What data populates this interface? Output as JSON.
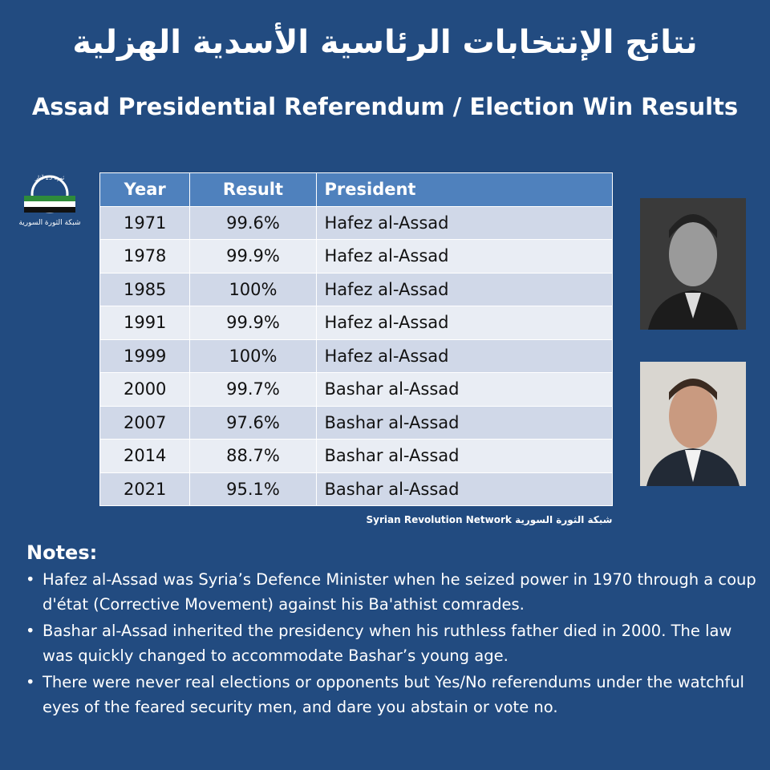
{
  "header": {
    "title_ar": "نتائج الإنتخابات الرئاسية الأسدية الهزلية",
    "title_en": "Assad Presidential Referendum / Election Win Results"
  },
  "logo": {
    "top": "ثورة 15 آذار",
    "caption": "شبكة الثورة السورية"
  },
  "table": {
    "columns": [
      "Year",
      "Result",
      "President"
    ],
    "rows": [
      [
        "1971",
        "99.6%",
        "Hafez al-Assad"
      ],
      [
        "1978",
        "99.9%",
        "Hafez al-Assad"
      ],
      [
        "1985",
        "100%",
        "Hafez al-Assad"
      ],
      [
        "1991",
        "99.9%",
        "Hafez al-Assad"
      ],
      [
        "1999",
        "100%",
        "Hafez al-Assad"
      ],
      [
        "2000",
        "99.7%",
        "Bashar al-Assad"
      ],
      [
        "2007",
        "97.6%",
        "Bashar al-Assad"
      ],
      [
        "2014",
        "88.7%",
        "Bashar al-Assad"
      ],
      [
        "2021",
        "95.1%",
        "Bashar al-Assad"
      ]
    ]
  },
  "source": "Syrian Revolution Network شبكة الثورة السورية",
  "notes": {
    "title": "Notes:",
    "items": [
      "Hafez al-Assad was Syria’s Defence Minister when he seized power in 1970 through a coup d'état (Corrective Movement) against his Ba'athist comrades.",
      "Bashar al-Assad inherited the presidency when his ruthless father died in 2000. The law was quickly changed to accommodate Bashar’s young age.",
      "There were never real elections or opponents but Yes/No referendums under the watchful eyes of the feared security men, and dare you abstain or vote no."
    ]
  }
}
